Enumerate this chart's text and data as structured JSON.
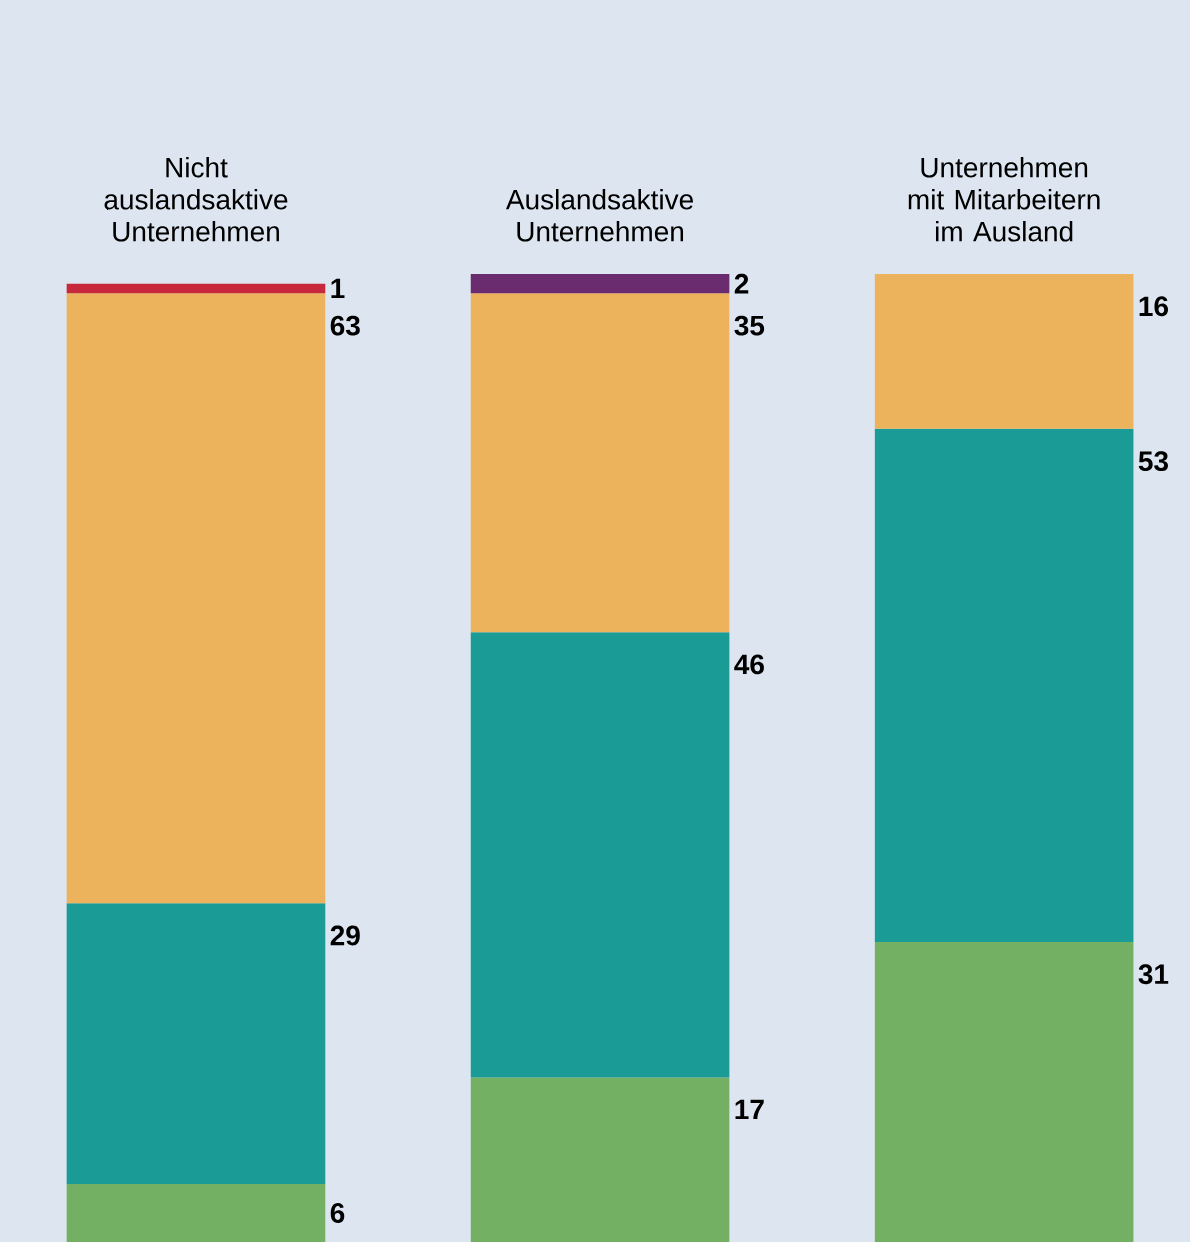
{
  "chart_data": {
    "type": "bar",
    "stacked": true,
    "data_labels": true,
    "categories": [
      "Nicht auslandsaktive Unternehmen",
      "Auslandsaktive Unternehmen",
      "Unternehmen mit Mitarbeitern im Ausland"
    ],
    "series": [
      {
        "color": "#74b064",
        "values": [
          6,
          17,
          31
        ]
      },
      {
        "color": "#1a9b96",
        "values": [
          29,
          46,
          53
        ]
      },
      {
        "color": "#ecb25c",
        "values": [
          63,
          35,
          16
        ]
      },
      {
        "color": "#c8283c",
        "colors": [
          "#c8283c",
          "#6a2c6e",
          null
        ],
        "values": [
          1,
          2,
          null
        ]
      }
    ]
  }
}
